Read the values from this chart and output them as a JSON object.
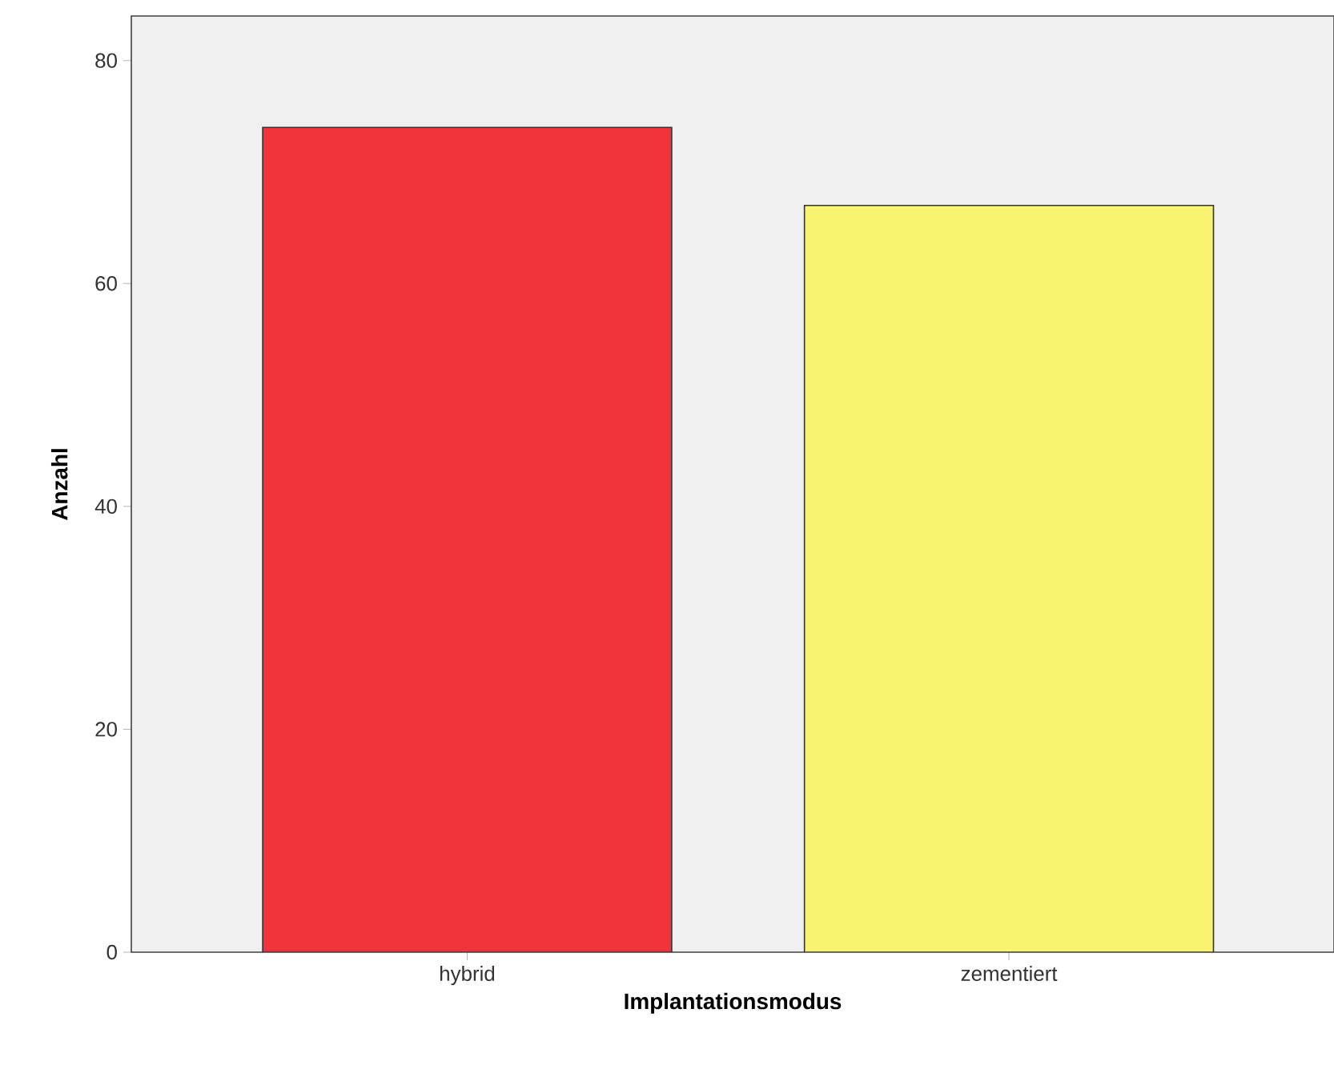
{
  "chart_data": {
    "type": "bar",
    "xlabel": "Implantationsmodus",
    "ylabel": "Anzahl",
    "categories": [
      "hybrid",
      "zementiert"
    ],
    "values": [
      74,
      67
    ],
    "colors": [
      "#f0323a",
      "#f8f472"
    ],
    "ylim": [
      0,
      84
    ],
    "yticks": [
      0,
      20,
      40,
      60,
      80
    ],
    "grid": false
  }
}
